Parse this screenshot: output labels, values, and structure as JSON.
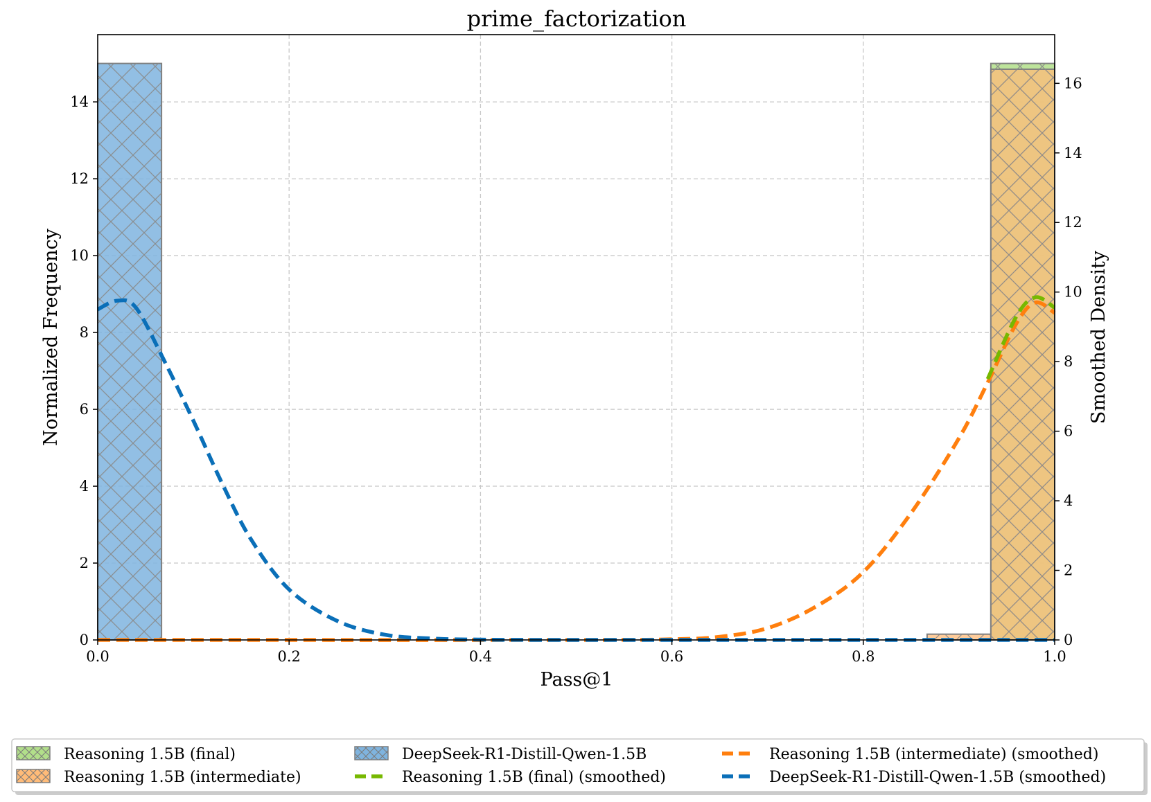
{
  "chart_data": {
    "type": "bar",
    "title": "prime_factorization",
    "xlabel": "Pass@1",
    "ylabel": "Normalized Frequency",
    "y2label": "Smoothed Density",
    "xlim": [
      0.0,
      1.0
    ],
    "ylim": [
      0,
      15.75
    ],
    "y2lim": [
      0,
      17.4
    ],
    "xticks": [
      "0.0",
      "0.2",
      "0.4",
      "0.6",
      "0.8",
      "1.0"
    ],
    "yticks": [
      "0",
      "2",
      "4",
      "6",
      "8",
      "10",
      "12",
      "14"
    ],
    "y2ticks": [
      "0",
      "2",
      "4",
      "6",
      "8",
      "10",
      "12",
      "14",
      "16"
    ],
    "grid": true,
    "legend_position": "bottom-center",
    "bin_width": 0.0667,
    "histograms": [
      {
        "name": "Reasoning 1.5B (final)",
        "color": "#b2df8a",
        "bins": [
          {
            "x0": 0.9333,
            "x1": 1.0,
            "value": 15.0
          }
        ]
      },
      {
        "name": "Reasoning 1.5B (intermediate)",
        "color": "#ffbb78",
        "bins": [
          {
            "x0": 0.8667,
            "x1": 0.9333,
            "value": 0.15
          },
          {
            "x0": 0.9333,
            "x1": 1.0,
            "value": 14.85
          }
        ]
      },
      {
        "name": "DeepSeek-R1-Distill-Qwen-1.5B",
        "color": "#7fb4df",
        "bins": [
          {
            "x0": 0.0,
            "x1": 0.0667,
            "value": 15.0
          }
        ]
      }
    ],
    "series": [
      {
        "name": "Reasoning 1.5B (intermediate) (smoothed)",
        "color": "#ff7f0e",
        "x": [
          0.0,
          0.5,
          0.6,
          0.65,
          0.7,
          0.75,
          0.8,
          0.85,
          0.9,
          0.93,
          0.96,
          0.98,
          1.0
        ],
        "y": [
          0.0,
          0.0,
          0.02,
          0.09,
          0.34,
          0.95,
          1.95,
          3.65,
          5.8,
          7.4,
          9.1,
          9.7,
          9.4
        ]
      },
      {
        "name": "Reasoning 1.5B (final) (smoothed)",
        "color": "#77b800",
        "x": [
          0.93,
          0.96,
          0.98,
          1.0
        ],
        "y": [
          7.5,
          9.3,
          9.85,
          9.55
        ]
      },
      {
        "name": "DeepSeek-R1-Distill-Qwen-1.5B (smoothed)",
        "color": "#0a6fb8",
        "x": [
          0.0,
          0.02,
          0.04,
          0.07,
          0.1,
          0.13,
          0.16,
          0.2,
          0.25,
          0.3,
          0.35,
          0.4,
          0.5,
          1.0
        ],
        "y": [
          9.5,
          9.75,
          9.55,
          8.0,
          6.3,
          4.5,
          2.9,
          1.45,
          0.55,
          0.15,
          0.04,
          0.01,
          0.0,
          0.0
        ]
      }
    ]
  },
  "legend": {
    "items": [
      {
        "label": "Reasoning 1.5B (final)",
        "kind": "patch",
        "color": "#b2df8a"
      },
      {
        "label": "Reasoning 1.5B (intermediate)",
        "kind": "patch",
        "color": "#ffbb78"
      },
      {
        "label": "DeepSeek-R1-Distill-Qwen-1.5B",
        "kind": "patch",
        "color": "#7fb4df"
      },
      {
        "label": "Reasoning 1.5B (final) (smoothed)",
        "kind": "line",
        "color": "#77b800"
      },
      {
        "label": "Reasoning 1.5B (intermediate) (smoothed)",
        "kind": "line",
        "color": "#ff7f0e"
      },
      {
        "label": "DeepSeek-R1-Distill-Qwen-1.5B (smoothed)",
        "kind": "line",
        "color": "#0a6fb8"
      }
    ]
  }
}
